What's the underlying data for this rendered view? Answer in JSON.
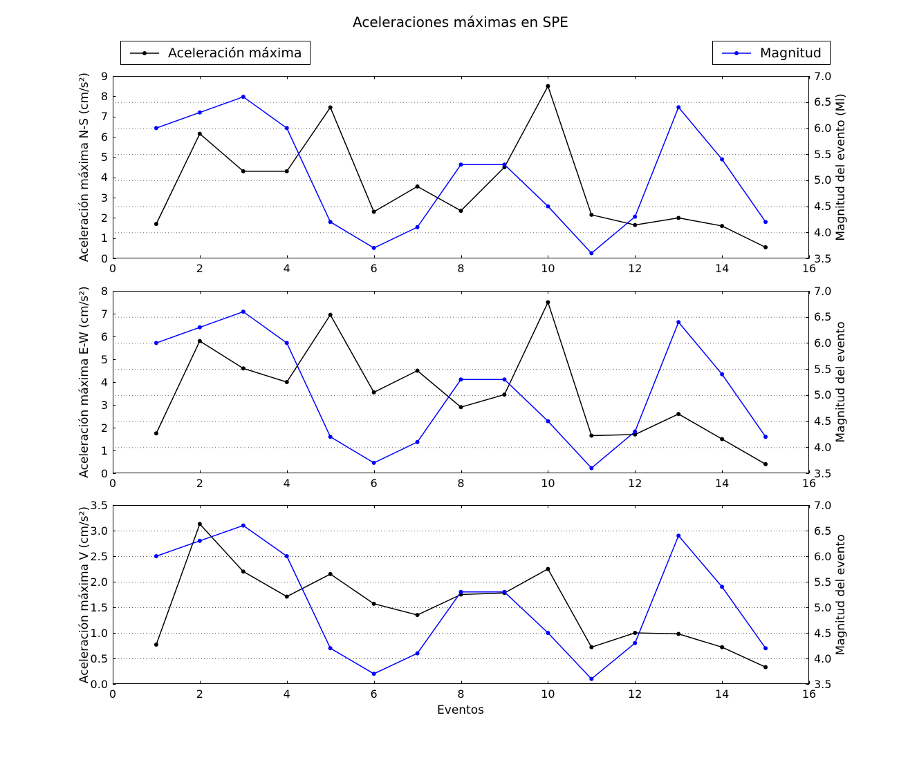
{
  "title": "Aceleraciones máximas en SPE",
  "xlabel": "Eventos",
  "legend": {
    "acceleration": {
      "label": "Aceleración máxima",
      "color": "#000000"
    },
    "magnitude": {
      "label": "Magnitud",
      "color": "#0000ff"
    }
  },
  "colors": {
    "acceleration": "#000000",
    "magnitude": "#0000ff",
    "grid": "#4d4d4d",
    "frame": "#000000"
  },
  "x_tick_labels": [
    "0",
    "2",
    "4",
    "6",
    "8",
    "10",
    "12",
    "14",
    "16"
  ],
  "right_tick_labels": [
    "3.5",
    "4.0",
    "4.5",
    "5.0",
    "5.5",
    "6.0",
    "6.5",
    "7.0"
  ],
  "grid_values_right": [
    4.0,
    4.5,
    5.0,
    5.5,
    6.0,
    6.5
  ],
  "chart_data": [
    {
      "type": "line",
      "title": "",
      "ylabel_left": "Aceleración máxima N-S (cm/s²)",
      "ylabel_right": "Magnitud del evento (Ml)",
      "xlim": [
        0,
        16
      ],
      "ylim_left": [
        0,
        9
      ],
      "ylim_right": [
        3.5,
        7.0
      ],
      "left_tick_labels": [
        "0",
        "1",
        "2",
        "3",
        "4",
        "5",
        "6",
        "7",
        "8",
        "9"
      ],
      "grid": "horizontal-dotted",
      "legend_position": "figure-top",
      "x": [
        1,
        2,
        3,
        4,
        5,
        6,
        7,
        8,
        9,
        10,
        11,
        12,
        13,
        14,
        15
      ],
      "series": [
        {
          "name": "Aceleración máxima",
          "axis": "left",
          "color": "#000000",
          "values": [
            1.7,
            6.15,
            4.3,
            4.3,
            7.45,
            2.3,
            3.55,
            2.35,
            4.5,
            8.5,
            2.15,
            1.65,
            2.0,
            1.6,
            0.55
          ]
        },
        {
          "name": "Magnitud",
          "axis": "right",
          "color": "#0000ff",
          "values": [
            6.0,
            6.3,
            6.6,
            6.0,
            4.2,
            3.7,
            4.1,
            5.3,
            5.3,
            4.5,
            3.6,
            4.3,
            6.4,
            5.4,
            4.2
          ]
        }
      ]
    },
    {
      "type": "line",
      "title": "",
      "ylabel_left": "Aceleración máxima E-W (cm/s²)",
      "ylabel_right": "Magnitud del evento",
      "xlim": [
        0,
        16
      ],
      "ylim_left": [
        0,
        8
      ],
      "ylim_right": [
        3.5,
        7.0
      ],
      "left_tick_labels": [
        "0",
        "1",
        "2",
        "3",
        "4",
        "5",
        "6",
        "7",
        "8"
      ],
      "grid": "horizontal-dotted",
      "legend_position": "figure-top",
      "x": [
        1,
        2,
        3,
        4,
        5,
        6,
        7,
        8,
        9,
        10,
        11,
        12,
        13,
        14,
        15
      ],
      "series": [
        {
          "name": "Aceleración máxima",
          "axis": "left",
          "color": "#000000",
          "values": [
            1.75,
            5.8,
            4.6,
            4.0,
            6.95,
            3.55,
            4.5,
            2.9,
            3.45,
            7.5,
            1.65,
            1.7,
            2.6,
            1.5,
            0.4
          ]
        },
        {
          "name": "Magnitud",
          "axis": "right",
          "color": "#0000ff",
          "values": [
            6.0,
            6.3,
            6.6,
            6.0,
            4.2,
            3.7,
            4.1,
            5.3,
            5.3,
            4.5,
            3.6,
            4.3,
            6.4,
            5.4,
            4.2
          ]
        }
      ]
    },
    {
      "type": "line",
      "title": "",
      "ylabel_left": "Aceleración máxima V (cm/s²)",
      "ylabel_right": "Magnitud del evento",
      "xlim": [
        0,
        16
      ],
      "ylim_left": [
        0,
        3.5
      ],
      "ylim_right": [
        3.5,
        7.0
      ],
      "left_tick_labels": [
        "0.0",
        "0.5",
        "1.0",
        "1.5",
        "2.0",
        "2.5",
        "3.0",
        "3.5"
      ],
      "grid": "horizontal-dotted",
      "legend_position": "figure-top",
      "x": [
        1,
        2,
        3,
        4,
        5,
        6,
        7,
        8,
        9,
        10,
        11,
        12,
        13,
        14,
        15
      ],
      "series": [
        {
          "name": "Aceleración máxima",
          "axis": "left",
          "color": "#000000",
          "values": [
            0.77,
            3.13,
            2.2,
            1.71,
            2.15,
            1.57,
            1.35,
            1.75,
            1.78,
            2.25,
            0.72,
            1.0,
            0.98,
            0.72,
            0.33
          ]
        },
        {
          "name": "Magnitud",
          "axis": "right",
          "color": "#0000ff",
          "values": [
            6.0,
            6.3,
            6.6,
            6.0,
            4.2,
            3.7,
            4.1,
            5.3,
            5.3,
            4.5,
            3.6,
            4.3,
            6.4,
            5.4,
            4.2
          ]
        }
      ]
    }
  ]
}
